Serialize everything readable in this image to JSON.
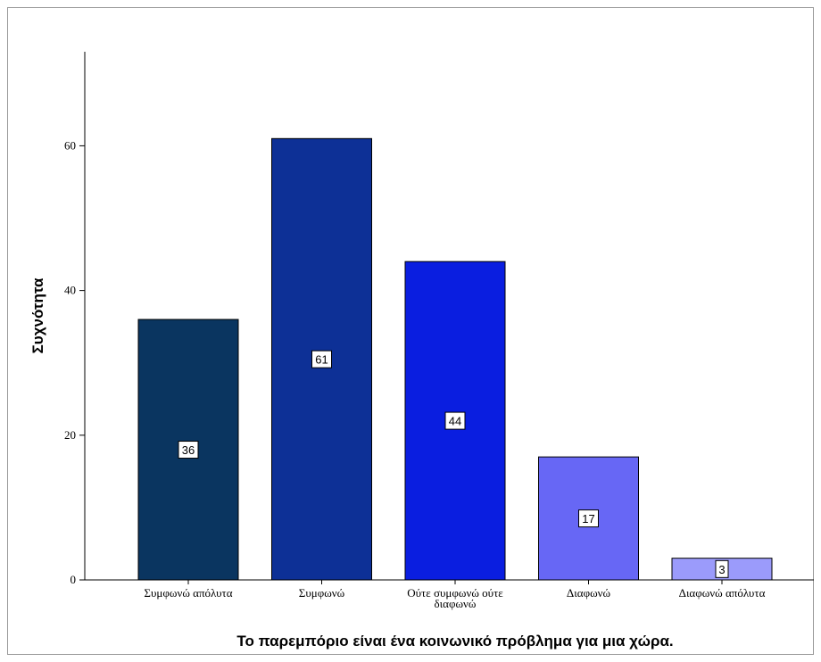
{
  "chart_data": {
    "type": "bar",
    "categories": [
      "Συμφωνώ απόλυτα",
      "Συμφωνώ",
      "Ούτε συμφωνώ ούτε διαφωνώ",
      "Διαφωνώ",
      "Διαφωνώ απόλυτα"
    ],
    "values": [
      36,
      61,
      44,
      17,
      3
    ],
    "data_labels": [
      "36",
      "61",
      "44",
      "17",
      "3"
    ],
    "colors": [
      "#0a3560",
      "#0d3096",
      "#0a1ee0",
      "#6767f5",
      "#9b9bfb"
    ],
    "xlabel": "Το παρεμπόριο είναι ένα κοινωνικό πρόβλημα για μια χώρα.",
    "ylabel": "Συχνότητα",
    "yticks": [
      0,
      20,
      40,
      60
    ],
    "ylim": [
      0,
      73
    ],
    "grid": false,
    "legend": "none"
  }
}
